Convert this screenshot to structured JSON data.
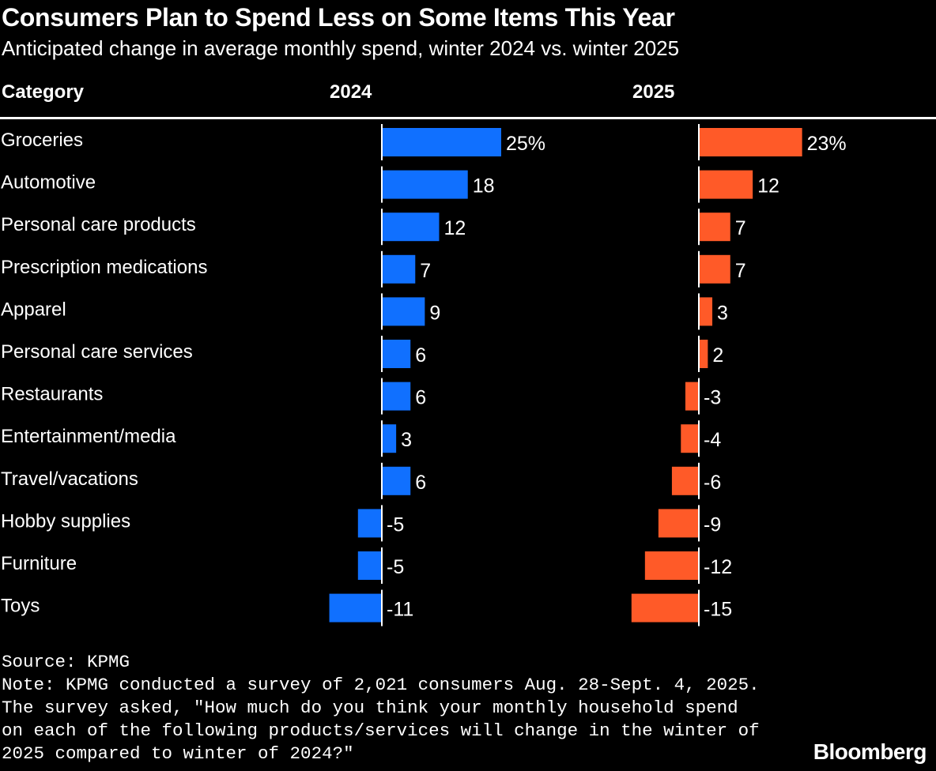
{
  "title": "Consumers Plan to Spend Less on Some Items This Year",
  "subtitle": "Anticipated change in average monthly spend, winter 2024 vs. winter 2025",
  "chart_data": {
    "type": "bar",
    "orientation": "horizontal",
    "category_header": "Category",
    "categories": [
      "Groceries",
      "Automotive",
      "Personal care products",
      "Prescription medications",
      "Apparel",
      "Personal care services",
      "Restaurants",
      "Entertainment/media",
      "Travel/vacations",
      "Hobby supplies",
      "Furniture",
      "Toys"
    ],
    "series": [
      {
        "name": "2024",
        "color": "#1070ff",
        "values": [
          25,
          18,
          12,
          7,
          9,
          6,
          6,
          3,
          6,
          -5,
          -5,
          -11
        ]
      },
      {
        "name": "2025",
        "color": "#ff5a28",
        "values": [
          23,
          12,
          7,
          7,
          3,
          2,
          -3,
          -4,
          -6,
          -9,
          -12,
          -15
        ]
      }
    ],
    "unit": "%",
    "grid": false
  },
  "footer": {
    "source": "Source: KPMG",
    "note_lines": [
      "Note: KPMG conducted a survey of 2,021 consumers Aug. 28-Sept. 4, 2025.",
      "The survey asked, \"How much do you think your monthly household spend",
      "on each of the following products/services will change in the winter of",
      "2025 compared to winter of 2024?\""
    ]
  },
  "logo": "Bloomberg"
}
